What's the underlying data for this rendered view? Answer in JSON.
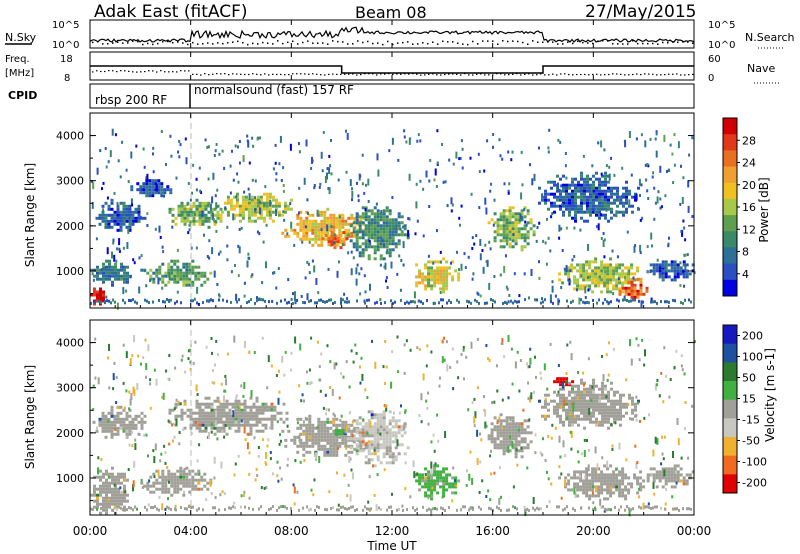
{
  "header": {
    "title": "Adak East (fitACF)",
    "beam": "Beam 08",
    "date": "27/May/2015"
  },
  "noise_panel": {
    "left_label": "N.Sky",
    "right_label": "N.Search",
    "ticks_left": [
      "10^5",
      "10^0"
    ],
    "ticks_right": [
      "10^5",
      "10^0"
    ]
  },
  "freq_panel": {
    "left_label_1": "Freq.",
    "left_label_2": "[MHz]",
    "right_label": "Nave",
    "ticks_left": [
      "18",
      "8"
    ],
    "ticks_right": [
      "60",
      "0"
    ]
  },
  "cpid": {
    "label": "CPID",
    "modes": [
      {
        "name": "rbsp 200 RF",
        "start_hour": 0,
        "end_hour": 4
      },
      {
        "name": "normalsound (fast) 157 RF",
        "start_hour": 4,
        "end_hour": 24
      }
    ]
  },
  "x_axis": {
    "label": "Time UT",
    "ticks": [
      "00:00",
      "04:00",
      "08:00",
      "12:00",
      "16:00",
      "20:00",
      "00:00"
    ]
  },
  "colors": {
    "power": [
      "#0000e0",
      "#2a4fc0",
      "#2e6f9a",
      "#3a8a6a",
      "#5fa050",
      "#a8c84a",
      "#f0c020",
      "#f0a030",
      "#e87020",
      "#e03818",
      "#d00000"
    ],
    "velocity": [
      "#e00000",
      "#f06a20",
      "#f0b030",
      "#c8c8c0",
      "#a0a098",
      "#40b040",
      "#2a7a30",
      "#2050a0",
      "#1818c0"
    ]
  },
  "chart_data": [
    {
      "type": "heatmap",
      "title": "Power",
      "ylabel": "Slant Range [km]",
      "xlabel": "",
      "ylim": [
        180,
        4500
      ],
      "xlim": [
        0,
        24
      ],
      "y_ticks": [
        "1000",
        "2000",
        "3000",
        "4000"
      ],
      "colorbar": {
        "label": "Power [dB]",
        "ticks": [
          "4",
          "8",
          "12",
          "16",
          "20",
          "24",
          "28"
        ],
        "range": [
          0,
          32
        ]
      },
      "regions": [
        {
          "t0": 0.0,
          "t1": 0.6,
          "r0": 200,
          "r1": 700,
          "value": 30
        },
        {
          "t0": 0.0,
          "t1": 1.6,
          "r0": 700,
          "r1": 1250,
          "value": 8
        },
        {
          "t0": 0.1,
          "t1": 2.2,
          "r0": 1900,
          "r1": 2600,
          "value": 6
        },
        {
          "t0": 1.6,
          "t1": 3.2,
          "r0": 2650,
          "r1": 3100,
          "value": 5
        },
        {
          "t0": 2.0,
          "t1": 4.8,
          "r0": 650,
          "r1": 1250,
          "value": 12
        },
        {
          "t0": 3.0,
          "t1": 5.5,
          "r0": 2000,
          "r1": 2600,
          "value": 14
        },
        {
          "t0": 5.2,
          "t1": 8.0,
          "r0": 2100,
          "r1": 2800,
          "value": 16
        },
        {
          "t0": 7.6,
          "t1": 11.0,
          "r0": 1600,
          "r1": 2400,
          "value": 20
        },
        {
          "t0": 9.2,
          "t1": 10.2,
          "r0": 1550,
          "r1": 1950,
          "value": 24
        },
        {
          "t0": 10.2,
          "t1": 12.6,
          "r0": 1300,
          "r1": 2500,
          "value": 10
        },
        {
          "t0": 12.8,
          "t1": 14.6,
          "r0": 550,
          "r1": 1300,
          "value": 18
        },
        {
          "t0": 15.8,
          "t1": 17.6,
          "r0": 1500,
          "r1": 2500,
          "value": 14
        },
        {
          "t0": 17.8,
          "t1": 21.8,
          "r0": 2100,
          "r1": 3200,
          "value": 6
        },
        {
          "t0": 18.6,
          "t1": 22.0,
          "r0": 550,
          "r1": 1300,
          "value": 16
        },
        {
          "t0": 21.0,
          "t1": 22.2,
          "r0": 400,
          "r1": 850,
          "value": 26
        },
        {
          "t0": 22.0,
          "t1": 24.0,
          "r0": 800,
          "r1": 1300,
          "value": 5
        }
      ]
    },
    {
      "type": "heatmap",
      "title": "Velocity",
      "ylabel": "Slant Range [km]",
      "xlabel": "Time UT",
      "ylim": [
        180,
        4500
      ],
      "xlim": [
        0,
        24
      ],
      "y_ticks": [
        "1000",
        "2000",
        "3000",
        "4000"
      ],
      "colorbar": {
        "label": "Velocity [m s-1]",
        "ticks": [
          "200",
          "100",
          "50",
          "15",
          "-15",
          "-50",
          "-100",
          "-200"
        ],
        "range": [
          -250,
          250
        ]
      },
      "regions": [
        {
          "t0": 0.0,
          "t1": 1.6,
          "r0": 200,
          "r1": 1250,
          "value": 0
        },
        {
          "t0": 0.1,
          "t1": 2.2,
          "r0": 1900,
          "r1": 2600,
          "value": 0
        },
        {
          "t0": 2.0,
          "t1": 4.8,
          "r0": 650,
          "r1": 1250,
          "value": 0
        },
        {
          "t0": 3.0,
          "t1": 8.0,
          "r0": 2000,
          "r1": 2800,
          "value": 0
        },
        {
          "t0": 7.6,
          "t1": 11.0,
          "r0": 1500,
          "r1": 2400,
          "value": 0
        },
        {
          "t0": 9.6,
          "t1": 10.2,
          "r0": 1950,
          "r1": 2150,
          "value": 70
        },
        {
          "t0": 10.2,
          "t1": 12.6,
          "r0": 1300,
          "r1": 2500,
          "value": -40
        },
        {
          "t0": 12.8,
          "t1": 14.6,
          "r0": 550,
          "r1": 1300,
          "value": 40
        },
        {
          "t0": 15.8,
          "t1": 17.6,
          "r0": 1500,
          "r1": 2500,
          "value": 0
        },
        {
          "t0": 18.4,
          "t1": 19.2,
          "r0": 3050,
          "r1": 3300,
          "value": -220
        },
        {
          "t0": 17.8,
          "t1": 21.8,
          "r0": 2100,
          "r1": 3200,
          "value": 0
        },
        {
          "t0": 18.6,
          "t1": 22.0,
          "r0": 550,
          "r1": 1300,
          "value": 0
        },
        {
          "t0": 22.0,
          "t1": 24.0,
          "r0": 800,
          "r1": 1300,
          "value": 0
        }
      ]
    }
  ]
}
